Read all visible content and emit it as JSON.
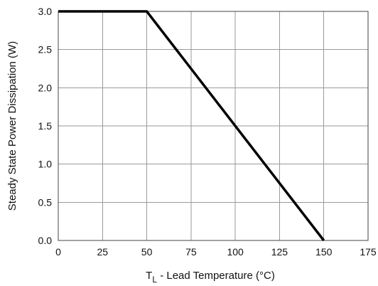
{
  "chart_data": {
    "type": "line",
    "title": "",
    "xlabel": "T",
    "xlabel_subscript": "L",
    "xlabel_suffix": " - Lead Temperature (°C)",
    "ylabel": "Steady State Power Dissipation (W)",
    "xlim": [
      0,
      175
    ],
    "ylim": [
      0.0,
      3.0
    ],
    "xticks": [
      0,
      25,
      50,
      75,
      100,
      125,
      150,
      175
    ],
    "xtick_labels": [
      "0",
      "25",
      "50",
      "75",
      "100",
      "125",
      "150",
      "175"
    ],
    "yticks": [
      0.0,
      0.5,
      1.0,
      1.5,
      2.0,
      2.5,
      3.0
    ],
    "ytick_labels": [
      "0.0",
      "0.5",
      "1.0",
      "1.5",
      "2.0",
      "2.5",
      "3.0"
    ],
    "grid": true,
    "series": [
      {
        "x": [
          0,
          50,
          150
        ],
        "y": [
          3.0,
          3.0,
          0.0
        ]
      }
    ],
    "colors": {
      "line": "#000000",
      "grid": "#9a9a9a",
      "frame": "#444444"
    }
  }
}
